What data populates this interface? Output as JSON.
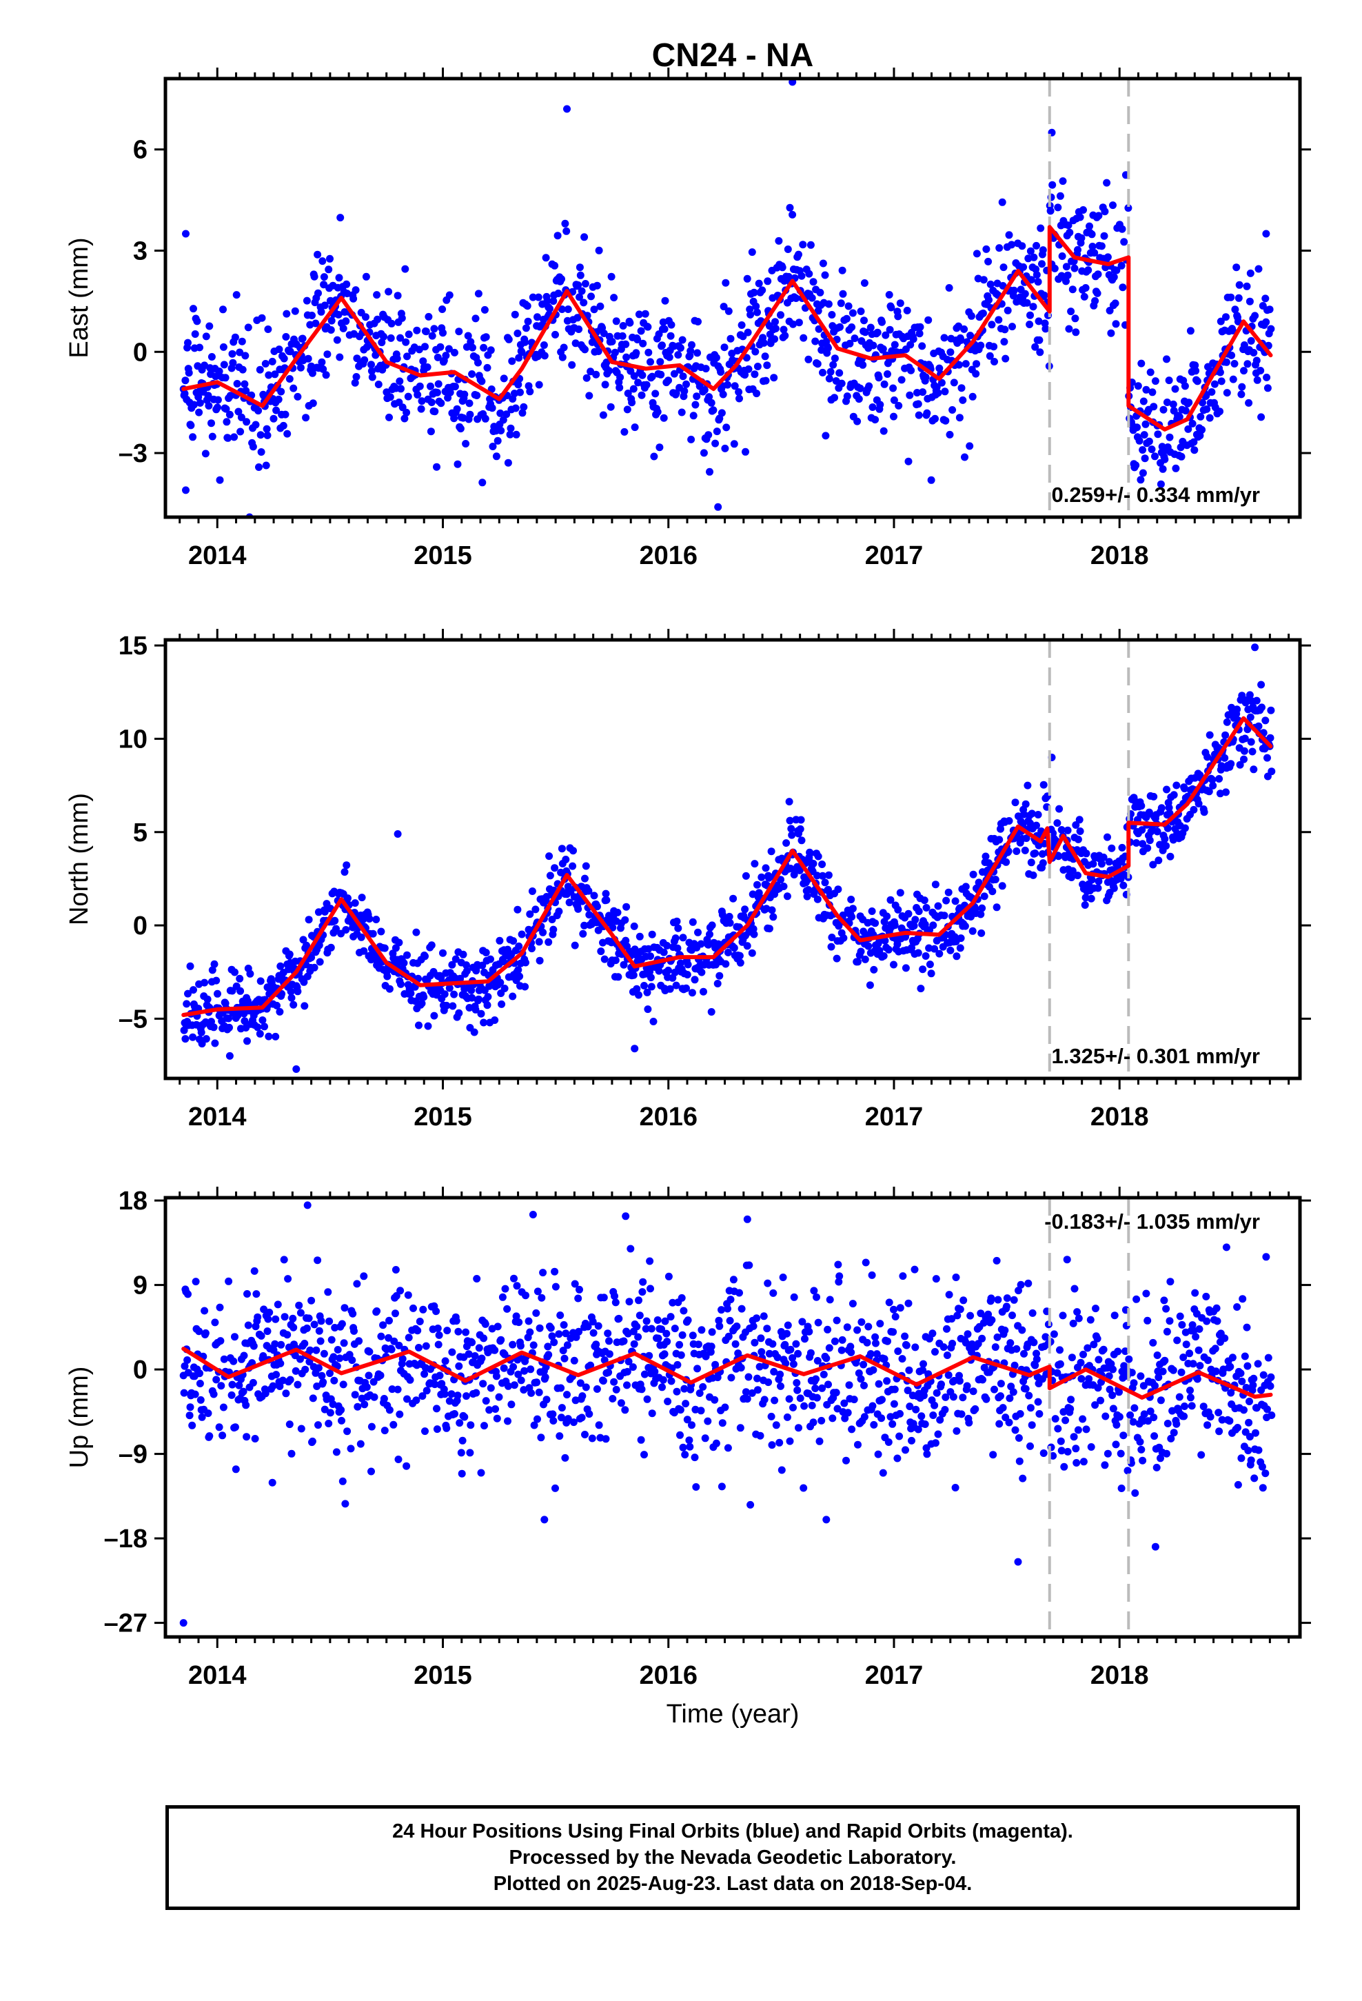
{
  "title": "CN24 - NA",
  "xlabel": "Time (year)",
  "colors": {
    "data": "#0000ff",
    "model": "#ff0000",
    "offset": "#bbbbbb",
    "axis": "#000000"
  },
  "caption": [
    "24 Hour Positions Using Final Orbits (blue) and Rapid Orbits (magenta).",
    "Processed by the Nevada Geodetic Laboratory.",
    "Plotted on 2025-Aug-23. Last data on 2018-Sep-04."
  ],
  "chart_data": [
    {
      "type": "scatter",
      "component": "east",
      "ylabel": "East (mm)",
      "rate_label": "0.259+/- 0.334 mm/yr",
      "rate_position": "bottom-right",
      "xlim": [
        2013.77,
        2018.8
      ],
      "ylim": [
        -4.9,
        8.1
      ],
      "yticks": [
        -3,
        0,
        3,
        6
      ],
      "xticks": [
        2014,
        2015,
        2016,
        2017,
        2018
      ],
      "offsets": [
        2017.69,
        2018.04
      ],
      "trend": 0.259,
      "model_knots": [
        [
          2013.85,
          -1.1
        ],
        [
          2014.0,
          -0.9
        ],
        [
          2014.2,
          -1.6
        ],
        [
          2014.35,
          -0.2
        ],
        [
          2014.55,
          1.6
        ],
        [
          2014.75,
          -0.3
        ],
        [
          2014.9,
          -0.7
        ],
        [
          2015.05,
          -0.6
        ],
        [
          2015.25,
          -1.4
        ],
        [
          2015.35,
          -0.5
        ],
        [
          2015.55,
          1.8
        ],
        [
          2015.75,
          -0.3
        ],
        [
          2015.9,
          -0.5
        ],
        [
          2016.05,
          -0.4
        ],
        [
          2016.2,
          -1.1
        ],
        [
          2016.3,
          -0.4
        ],
        [
          2016.55,
          2.1
        ],
        [
          2016.75,
          0.1
        ],
        [
          2016.9,
          -0.2
        ],
        [
          2017.05,
          -0.1
        ],
        [
          2017.2,
          -0.8
        ],
        [
          2017.35,
          0.3
        ],
        [
          2017.55,
          2.4
        ],
        [
          2017.69,
          1.2
        ],
        [
          2017.69,
          3.7
        ],
        [
          2017.8,
          2.8
        ],
        [
          2017.95,
          2.6
        ],
        [
          2018.04,
          2.8
        ],
        [
          2018.04,
          -1.6
        ],
        [
          2018.2,
          -2.3
        ],
        [
          2018.3,
          -2.0
        ],
        [
          2018.55,
          0.9
        ],
        [
          2018.67,
          -0.1
        ]
      ],
      "amplitude": 1.4,
      "noise": 1.0,
      "outliers": [
        [
          2013.86,
          3.5
        ],
        [
          2013.86,
          -4.1
        ],
        [
          2015.55,
          7.2
        ],
        [
          2016.55,
          8.0
        ],
        [
          2017.7,
          6.5
        ],
        [
          2018.65,
          3.5
        ],
        [
          2016.22,
          -4.6
        ]
      ]
    },
    {
      "type": "scatter",
      "component": "north",
      "ylabel": "North (mm)",
      "rate_label": "1.325+/- 0.301 mm/yr",
      "rate_position": "bottom-right",
      "xlim": [
        2013.77,
        2018.8
      ],
      "ylim": [
        -8.2,
        15.3
      ],
      "yticks": [
        -5,
        0,
        5,
        10,
        15
      ],
      "xticks": [
        2014,
        2015,
        2016,
        2017,
        2018
      ],
      "offsets": [
        2017.69,
        2018.04
      ],
      "trend": 1.325,
      "model_knots": [
        [
          2013.85,
          -4.8
        ],
        [
          2014.0,
          -4.5
        ],
        [
          2014.2,
          -4.4
        ],
        [
          2014.35,
          -2.5
        ],
        [
          2014.55,
          1.4
        ],
        [
          2014.75,
          -2.0
        ],
        [
          2014.9,
          -3.2
        ],
        [
          2015.05,
          -3.1
        ],
        [
          2015.2,
          -3.0
        ],
        [
          2015.35,
          -1.5
        ],
        [
          2015.55,
          2.7
        ],
        [
          2015.75,
          -0.5
        ],
        [
          2015.85,
          -2.2
        ],
        [
          2016.05,
          -1.7
        ],
        [
          2016.2,
          -1.7
        ],
        [
          2016.35,
          0.0
        ],
        [
          2016.55,
          4.0
        ],
        [
          2016.75,
          0.5
        ],
        [
          2016.85,
          -0.8
        ],
        [
          2017.05,
          -0.4
        ],
        [
          2017.2,
          -0.5
        ],
        [
          2017.35,
          1.2
        ],
        [
          2017.55,
          5.3
        ],
        [
          2017.65,
          4.5
        ],
        [
          2017.68,
          5.2
        ],
        [
          2017.69,
          3.4
        ],
        [
          2017.75,
          4.8
        ],
        [
          2017.85,
          2.8
        ],
        [
          2017.95,
          2.6
        ],
        [
          2018.04,
          3.2
        ],
        [
          2018.04,
          5.5
        ],
        [
          2018.2,
          5.4
        ],
        [
          2018.3,
          6.5
        ],
        [
          2018.55,
          11.1
        ],
        [
          2018.67,
          9.6
        ]
      ],
      "amplitude": 1.2,
      "noise": 1.0,
      "outliers": [
        [
          2014.35,
          -7.7
        ],
        [
          2014.8,
          4.9
        ],
        [
          2015.85,
          -6.6
        ],
        [
          2018.6,
          14.9
        ],
        [
          2017.7,
          9.0
        ]
      ]
    },
    {
      "type": "scatter",
      "component": "up",
      "ylabel": "Up (mm)",
      "rate_label": "-0.183+/- 1.035 mm/yr",
      "rate_position": "top-right",
      "xlim": [
        2013.77,
        2018.8
      ],
      "ylim": [
        -28.5,
        18.3
      ],
      "yticks": [
        -27,
        -18,
        -9,
        0,
        9,
        18
      ],
      "xticks": [
        2014,
        2015,
        2016,
        2017,
        2018
      ],
      "offsets": [
        2017.69,
        2018.04
      ],
      "trend": -0.183,
      "model_knots": [
        [
          2013.85,
          2.2
        ],
        [
          2014.05,
          -0.8
        ],
        [
          2014.35,
          2.1
        ],
        [
          2014.55,
          -0.4
        ],
        [
          2014.85,
          1.9
        ],
        [
          2015.1,
          -1.2
        ],
        [
          2015.35,
          1.8
        ],
        [
          2015.6,
          -0.6
        ],
        [
          2015.85,
          1.7
        ],
        [
          2016.1,
          -1.4
        ],
        [
          2016.35,
          1.5
        ],
        [
          2016.6,
          -0.5
        ],
        [
          2016.85,
          1.4
        ],
        [
          2017.1,
          -1.6
        ],
        [
          2017.35,
          1.3
        ],
        [
          2017.6,
          -0.6
        ],
        [
          2017.69,
          0.3
        ],
        [
          2017.69,
          -2.0
        ],
        [
          2017.85,
          0.0
        ],
        [
          2018.1,
          -3.0
        ],
        [
          2018.35,
          -0.3
        ],
        [
          2018.6,
          -2.9
        ],
        [
          2018.67,
          -2.7
        ]
      ],
      "amplitude": 1.6,
      "noise": 4.6,
      "outliers": [
        [
          2013.85,
          -27.0
        ],
        [
          2014.4,
          17.5
        ],
        [
          2015.4,
          16.5
        ],
        [
          2015.45,
          -16.0
        ],
        [
          2016.7,
          -16.0
        ],
        [
          2017.55,
          -20.5
        ],
        [
          2018.65,
          12.0
        ],
        [
          2016.35,
          16.0
        ]
      ]
    }
  ]
}
